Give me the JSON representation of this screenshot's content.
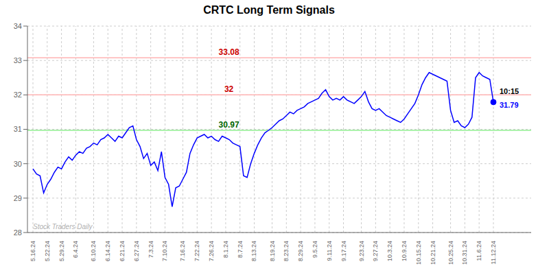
{
  "chart_data": {
    "type": "line",
    "title": "CRTC Long Term Signals",
    "categories": [
      "5.16.24",
      null,
      null,
      null,
      "5.22.24",
      null,
      null,
      null,
      "5.29.24",
      null,
      null,
      null,
      "6.4.24",
      null,
      null,
      null,
      null,
      "6.10.24",
      null,
      null,
      null,
      "6.14.24",
      null,
      null,
      null,
      "6.21.24",
      null,
      null,
      null,
      "6.27.24",
      null,
      null,
      null,
      "7.3.24",
      null,
      null,
      null,
      "7.10.24",
      null,
      null,
      null,
      null,
      "7.16.24",
      null,
      null,
      null,
      "7.22.24",
      null,
      null,
      null,
      "7.26.24",
      null,
      null,
      null,
      "8.1.24",
      null,
      null,
      null,
      "8.7.24",
      null,
      null,
      null,
      "8.13.24",
      null,
      null,
      null,
      null,
      "8.19.24",
      null,
      null,
      null,
      "8.23.24",
      null,
      null,
      null,
      "8.29.24",
      null,
      null,
      null,
      "9.5.24",
      null,
      null,
      null,
      "9.11.24",
      null,
      null,
      null,
      "9.17.24",
      null,
      null,
      null,
      null,
      "9.23.24",
      null,
      null,
      null,
      "9.27.24",
      null,
      null,
      null,
      "10.3.24",
      null,
      null,
      null,
      "10.9.24",
      null,
      null,
      null,
      "10.15.24",
      null,
      null,
      null,
      "10.21.24",
      null,
      null,
      null,
      null,
      "10.25.24",
      null,
      null,
      null,
      "10.31.24",
      null,
      null,
      null,
      "11.6.24",
      null,
      null,
      null,
      "11.12.24"
    ],
    "values": [
      29.85,
      29.7,
      29.65,
      29.15,
      29.4,
      29.55,
      29.75,
      29.9,
      29.85,
      30.05,
      30.2,
      30.1,
      30.25,
      30.35,
      30.3,
      30.45,
      30.5,
      30.6,
      30.55,
      30.7,
      30.75,
      30.85,
      30.75,
      30.65,
      30.8,
      30.75,
      30.9,
      31.05,
      31.1,
      30.7,
      30.5,
      30.15,
      30.3,
      29.95,
      30.05,
      29.8,
      30.35,
      29.6,
      29.4,
      28.75,
      29.3,
      29.35,
      29.55,
      29.75,
      30.3,
      30.55,
      30.75,
      30.8,
      30.85,
      30.75,
      30.8,
      30.7,
      30.65,
      30.8,
      30.75,
      30.7,
      30.6,
      30.55,
      30.5,
      29.65,
      29.6,
      30.0,
      30.3,
      30.55,
      30.75,
      30.9,
      30.97,
      31.05,
      31.15,
      31.25,
      31.3,
      31.4,
      31.5,
      31.45,
      31.55,
      31.6,
      31.65,
      31.75,
      31.8,
      31.85,
      31.9,
      32.05,
      32.15,
      31.95,
      31.85,
      31.9,
      31.85,
      31.95,
      31.85,
      31.8,
      31.75,
      31.85,
      31.95,
      32.1,
      31.8,
      31.6,
      31.55,
      31.6,
      31.5,
      31.4,
      31.35,
      31.3,
      31.25,
      31.2,
      31.3,
      31.45,
      31.6,
      31.75,
      32.0,
      32.3,
      32.5,
      32.65,
      32.6,
      32.55,
      32.5,
      32.45,
      32.4,
      31.55,
      31.2,
      31.25,
      31.1,
      31.05,
      31.15,
      31.35,
      32.5,
      32.65,
      32.55,
      32.5,
      32.45,
      31.79
    ],
    "color": "blue",
    "ylim": [
      28,
      34
    ],
    "yticks": [
      28,
      29,
      30,
      31,
      32,
      33,
      34
    ],
    "grid": true,
    "reference_lines": [
      {
        "y": 33.08,
        "color": "#ffb3b3",
        "label": "33.08",
        "label_color": "#cc0000"
      },
      {
        "y": 32.0,
        "color": "#ffb3b3",
        "label": "32",
        "label_color": "#cc0000"
      },
      {
        "y": 30.97,
        "color": "#90ee90",
        "label": "30.97",
        "label_color": "#006600"
      }
    ],
    "end_point": {
      "marker": "o",
      "time_label": "10:15",
      "time_color": "black",
      "price_label": "31.79",
      "price_color": "blue"
    },
    "watermark": {
      "text": "Stock Traders Daily",
      "color": "#b0b0b0"
    }
  }
}
